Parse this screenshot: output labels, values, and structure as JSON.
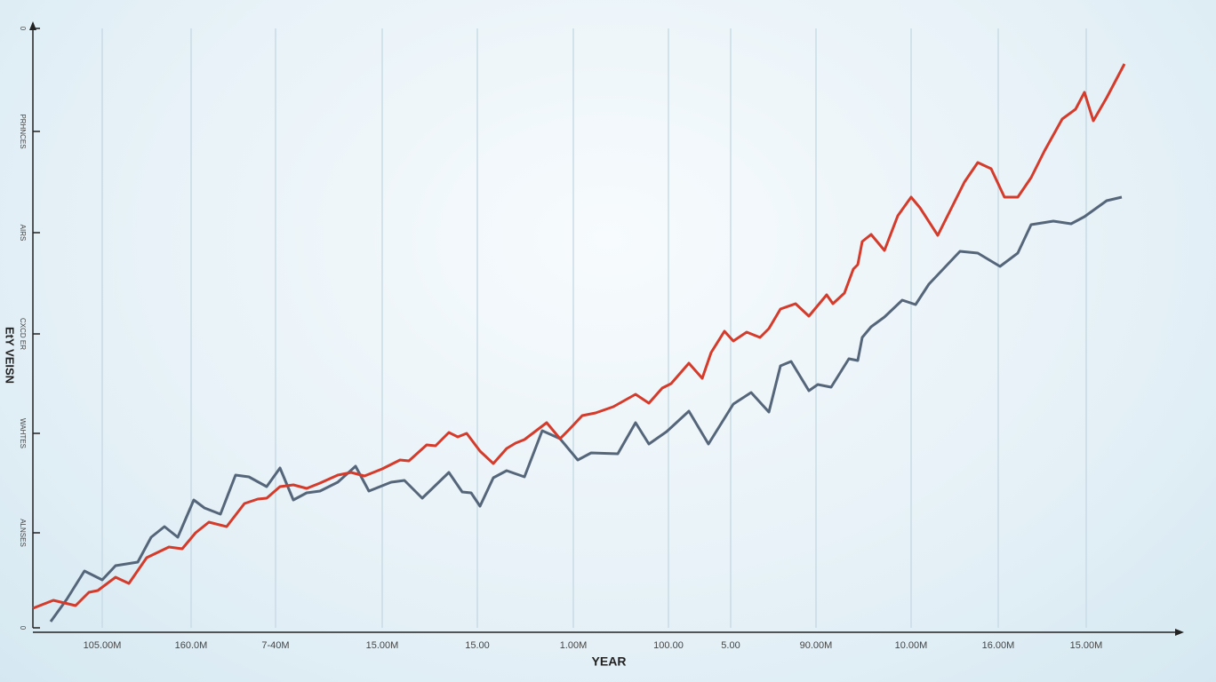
{
  "chart_data": {
    "type": "line",
    "xlabel": "YEAR",
    "ylabel": "EtY VEISN",
    "xlim": [
      0,
      1290
    ],
    "xticks": [
      {
        "value": 78,
        "label": "105.00M"
      },
      {
        "value": 178,
        "label": "160.0M"
      },
      {
        "value": 273,
        "label": "7-40M"
      },
      {
        "value": 393,
        "label": "15.00M"
      },
      {
        "value": 500,
        "label": "15.00"
      },
      {
        "value": 608,
        "label": "1.00M"
      },
      {
        "value": 715,
        "label": "100.00"
      },
      {
        "value": 785,
        "label": "5.00"
      },
      {
        "value": 881,
        "label": "90.00M"
      },
      {
        "value": 988,
        "label": "10.00M"
      },
      {
        "value": 1086,
        "label": "16.00M"
      },
      {
        "value": 1185,
        "label": "15.00M"
      }
    ],
    "ylim": [
      0,
      675
    ],
    "yticks": [
      0,
      {
        "value": 107,
        "label": "ALNSES"
      },
      {
        "value": 219,
        "label": "WAHTES"
      },
      {
        "value": 331,
        "label": "CXCD ER"
      },
      {
        "value": 445,
        "label": "AIRS"
      },
      {
        "value": 559,
        "label": "PRHNCES"
      },
      {
        "value": 675,
        "label": "0"
      }
    ],
    "grid": true,
    "series": [
      {
        "color": "#d43b2b",
        "x": [
          0,
          23,
          48,
          63,
          73,
          93,
          108,
          128,
          153,
          168,
          183,
          198,
          218,
          238,
          253,
          263,
          278,
          293,
          308,
          323,
          343,
          358,
          373,
          393,
          413,
          423,
          443,
          453,
          468,
          478,
          488,
          503,
          518,
          533,
          543,
          553,
          578,
          593,
          603,
          618,
          633,
          653,
          678,
          693,
          708,
          718,
          738,
          753,
          763,
          778,
          788,
          803,
          818,
          828,
          841,
          858,
          873,
          893,
          900,
          913,
          923,
          928,
          933,
          943,
          958,
          973,
          988,
          998,
          1018,
          1033,
          1048,
          1063,
          1078,
          1093,
          1108,
          1123,
          1138,
          1158,
          1173,
          1183,
          1193,
          1208,
          1228
        ],
        "values": [
          22,
          31,
          25,
          40,
          42,
          57,
          50,
          79,
          91,
          89,
          107,
          119,
          114,
          140,
          145,
          146,
          159,
          161,
          157,
          163,
          172,
          175,
          171,
          179,
          189,
          188,
          206,
          205,
          220,
          215,
          219,
          199,
          185,
          202,
          208,
          212,
          231,
          213,
          223,
          239,
          242,
          249,
          263,
          253,
          270,
          275,
          298,
          281,
          310,
          334,
          323,
          333,
          327,
          337,
          359,
          365,
          351,
          375,
          365,
          377,
          404,
          409,
          435,
          443,
          425,
          464,
          485,
          473,
          442,
          472,
          502,
          524,
          517,
          485,
          485,
          507,
          537,
          573,
          584,
          603,
          571,
          597,
          635
        ]
      },
      {
        "color": "#56667a",
        "x": [
          20,
          38,
          58,
          78,
          93,
          118,
          133,
          148,
          163,
          181,
          193,
          211,
          228,
          243,
          263,
          278,
          293,
          308,
          323,
          343,
          363,
          378,
          403,
          418,
          438,
          468,
          483,
          493,
          503,
          518,
          533,
          553,
          573,
          593,
          613,
          628,
          658,
          678,
          693,
          713,
          738,
          760,
          788,
          808,
          828,
          841,
          853,
          873,
          883,
          898,
          918,
          928,
          933,
          943,
          958,
          978,
          993,
          1008,
          1043,
          1063,
          1088,
          1108,
          1123,
          1148,
          1168,
          1183,
          1208,
          1225
        ],
        "values": [
          7,
          32,
          64,
          54,
          70,
          74,
          102,
          114,
          102,
          144,
          135,
          128,
          172,
          170,
          159,
          180,
          144,
          152,
          154,
          164,
          182,
          154,
          164,
          166,
          146,
          175,
          153,
          152,
          137,
          169,
          177,
          170,
          222,
          213,
          189,
          197,
          196,
          231,
          207,
          221,
          244,
          207,
          252,
          265,
          243,
          295,
          300,
          267,
          274,
          271,
          303,
          301,
          327,
          339,
          350,
          369,
          364,
          387,
          424,
          422,
          407,
          422,
          454,
          458,
          455,
          463,
          481,
          485
        ]
      }
    ]
  }
}
